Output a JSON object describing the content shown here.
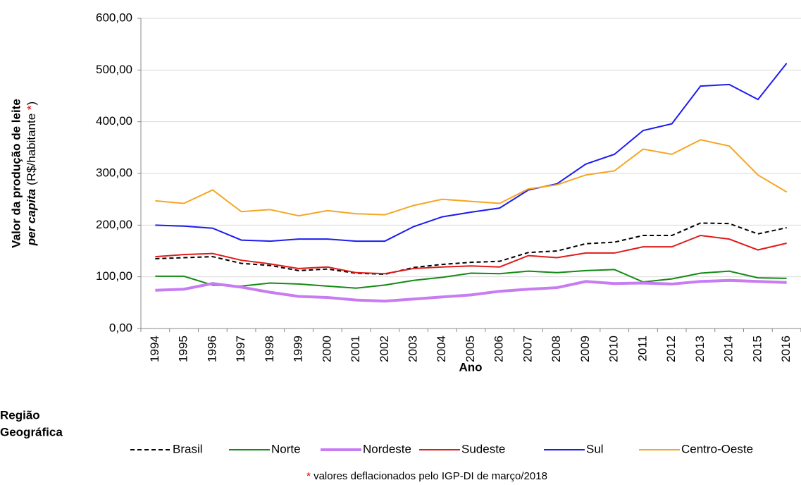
{
  "chart_data": {
    "type": "line",
    "y_label_main": "Valor da produção de leite",
    "y_label_italic": "per capita",
    "y_label_unit": "(R$/habitante ",
    "y_label_asterisk": "*",
    "y_label_close": ")",
    "x_label": "Ano",
    "legend_title": [
      "Região",
      "Geográfica"
    ],
    "footnote_asterisk": "*",
    "footnote": "valores  deflacionados  pelo IGP-DI  de março/2018",
    "categories": [
      "1994",
      "1995",
      "1996",
      "1997",
      "1998",
      "1999",
      "2000",
      "2001",
      "2002",
      "2003",
      "2004",
      "2005",
      "2006",
      "2007",
      "2008",
      "2009",
      "2010",
      "2011",
      "2012",
      "2013",
      "2014",
      "2015",
      "2016"
    ],
    "ylim": [
      0,
      600
    ],
    "yticks": [
      {
        "value": 0,
        "label": "0,00"
      },
      {
        "value": 100,
        "label": "100,00"
      },
      {
        "value": 200,
        "label": "200,00"
      },
      {
        "value": 300,
        "label": "300,00"
      },
      {
        "value": 400,
        "label": "400,00"
      },
      {
        "value": 500,
        "label": "500,00"
      },
      {
        "value": 600,
        "label": "600,00"
      }
    ],
    "grid": true,
    "series": [
      {
        "name": "Brasil",
        "color": "#000000",
        "dashed": true,
        "values": [
          135,
          137,
          139,
          126,
          122,
          112,
          115,
          107,
          105,
          118,
          124,
          128,
          130,
          147,
          150,
          164,
          167,
          180,
          180,
          204,
          203,
          183,
          195
        ]
      },
      {
        "name": "Norte",
        "color": "#138a13",
        "values": [
          101,
          101,
          84,
          82,
          88,
          86,
          82,
          78,
          84,
          93,
          99,
          107,
          106,
          111,
          108,
          112,
          114,
          90,
          96,
          107,
          111,
          98,
          97
        ]
      },
      {
        "name": "Nordeste",
        "color": "#c77cf2",
        "values": [
          74,
          76,
          87,
          80,
          70,
          62,
          60,
          55,
          53,
          57,
          61,
          65,
          72,
          76,
          79,
          91,
          87,
          88,
          86,
          91,
          93,
          91,
          89
        ]
      },
      {
        "name": "Sudeste",
        "color": "#e01b1b",
        "values": [
          139,
          143,
          145,
          132,
          125,
          116,
          119,
          108,
          106,
          116,
          119,
          121,
          119,
          141,
          137,
          146,
          146,
          158,
          158,
          180,
          173,
          152,
          165
        ]
      },
      {
        "name": "Sul",
        "color": "#1c1cf0",
        "values": [
          200,
          198,
          194,
          171,
          169,
          173,
          173,
          169,
          169,
          197,
          216,
          225,
          233,
          268,
          280,
          318,
          337,
          383,
          396,
          469,
          472,
          443,
          513
        ]
      },
      {
        "name": "Centro-Oeste",
        "color": "#f5a623",
        "values": [
          247,
          242,
          268,
          226,
          230,
          218,
          228,
          222,
          220,
          238,
          250,
          246,
          242,
          270,
          278,
          297,
          305,
          347,
          337,
          365,
          353,
          297,
          264
        ]
      }
    ]
  }
}
